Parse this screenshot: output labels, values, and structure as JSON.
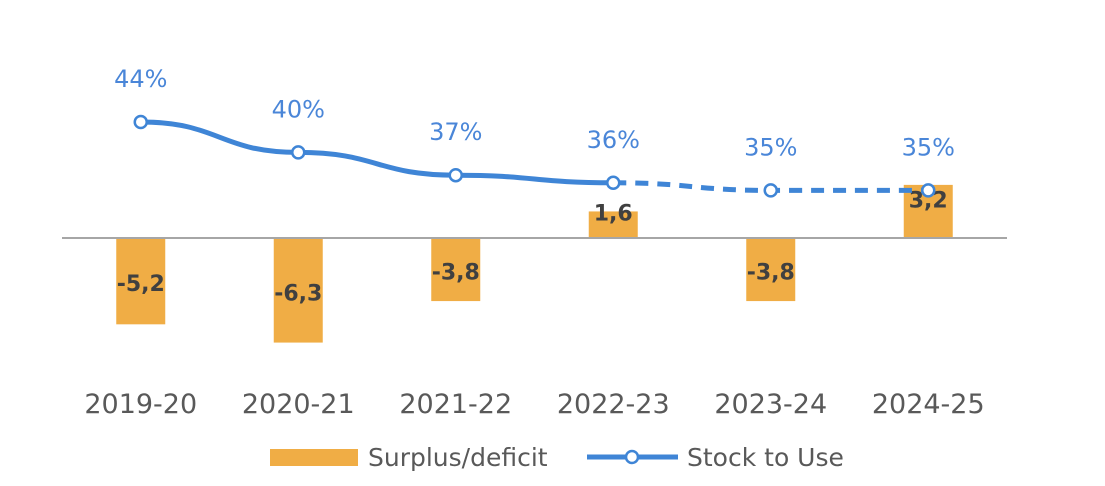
{
  "chart_data": {
    "type": "bar",
    "categories": [
      "2019-20",
      "2020-21",
      "2021-22",
      "2022-23",
      "2023-24",
      "2024-25"
    ],
    "series": [
      {
        "name": "Surplus/deficit",
        "type": "bar",
        "values": [
          -5.2,
          -6.3,
          -3.8,
          1.6,
          -3.8,
          3.2
        ],
        "labels": [
          "-5,2",
          "-6,3",
          "-3,8",
          "1,6",
          "-3,8",
          "3,2"
        ],
        "color": "#f0ad45"
      },
      {
        "name": "Stock to Use",
        "type": "line",
        "values": [
          44,
          40,
          37,
          36,
          35,
          35
        ],
        "labels": [
          "44%",
          "40%",
          "37%",
          "36%",
          "35%",
          "35%"
        ],
        "color": "#3f85d6",
        "projected_from_index": 3
      }
    ],
    "grid": false,
    "legend_position": "bottom"
  },
  "legend": {
    "bar_label": "Surplus/deficit",
    "line_label": "Stock to Use"
  },
  "colors": {
    "bar": "#f0ad45",
    "line": "#3f85d6",
    "axis": "#a6a6a6"
  }
}
